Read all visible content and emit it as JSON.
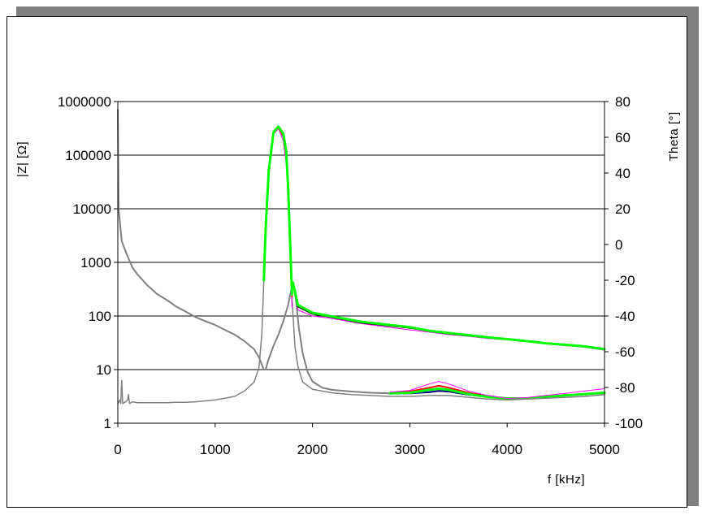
{
  "chart_data": {
    "type": "line",
    "xlabel": "f [kHz]",
    "ylabel_left": "|Z| [Ω]",
    "ylabel_right": "Theta [°]",
    "x_range": [
      0,
      5000
    ],
    "x_ticks": [
      0,
      1000,
      2000,
      3000,
      4000,
      5000
    ],
    "y_left_scale": "log",
    "y_left_range": [
      1,
      1000000
    ],
    "y_left_ticks": [
      1,
      10,
      100,
      1000,
      10000,
      100000,
      1000000
    ],
    "y_right_range": [
      -100,
      80
    ],
    "y_right_ticks": [
      -100,
      -80,
      -60,
      -40,
      -20,
      0,
      20,
      40,
      60,
      80
    ],
    "grid": "horizontal major lines",
    "legend": "none",
    "colors": {
      "gray": "#808080",
      "magenta": "#ff00ff",
      "red": "#ff0000",
      "green": "#00ff00",
      "black": "#000000",
      "navy": "#000080"
    },
    "series": [
      {
        "axis": "left",
        "color": "#808080",
        "width": 2,
        "points": [
          [
            0,
            700000
          ],
          [
            8,
            10000
          ],
          [
            40,
            2500
          ],
          [
            60,
            2000
          ],
          [
            100,
            1300
          ],
          [
            150,
            800
          ],
          [
            200,
            600
          ],
          [
            300,
            380
          ],
          [
            400,
            260
          ],
          [
            500,
            200
          ],
          [
            600,
            150
          ],
          [
            700,
            120
          ],
          [
            800,
            95
          ],
          [
            900,
            80
          ],
          [
            1000,
            68
          ],
          [
            1100,
            55
          ],
          [
            1200,
            45
          ],
          [
            1300,
            34
          ],
          [
            1400,
            24
          ],
          [
            1450,
            17
          ],
          [
            1500,
            10
          ],
          [
            1520,
            10
          ],
          [
            1540,
            14
          ],
          [
            1600,
            28
          ],
          [
            1650,
            45
          ],
          [
            1700,
            80
          ],
          [
            1750,
            160
          ],
          [
            1780,
            290
          ],
          [
            1800,
            420
          ],
          [
            1830,
            200
          ],
          [
            1860,
            60
          ],
          [
            1900,
            20
          ],
          [
            1950,
            9
          ],
          [
            2000,
            6
          ],
          [
            2100,
            4.6
          ],
          [
            2200,
            4.2
          ],
          [
            2400,
            3.9
          ],
          [
            2600,
            3.7
          ],
          [
            2800,
            3.6
          ],
          [
            3000,
            3.6
          ],
          [
            3200,
            3.8
          ],
          [
            3300,
            4
          ],
          [
            3400,
            3.9
          ],
          [
            3600,
            3.4
          ],
          [
            3800,
            3.1
          ],
          [
            4000,
            2.8
          ],
          [
            4200,
            2.9
          ],
          [
            4400,
            3.1
          ],
          [
            4600,
            3.3
          ],
          [
            4800,
            3.5
          ],
          [
            5000,
            3.8
          ]
        ]
      },
      {
        "axis": "left",
        "color": "#ff00ff",
        "width": 1,
        "points": [
          [
            1800,
            420
          ],
          [
            1850,
            130
          ],
          [
            2000,
            100
          ],
          [
            2200,
            90
          ],
          [
            2500,
            72
          ],
          [
            3000,
            55
          ],
          [
            3200,
            50
          ],
          [
            3400,
            45
          ],
          [
            3600,
            42
          ],
          [
            3800,
            38
          ],
          [
            4000,
            36
          ],
          [
            4200,
            33
          ],
          [
            4400,
            30
          ],
          [
            4600,
            28
          ],
          [
            4800,
            26
          ],
          [
            5000,
            23
          ]
        ]
      },
      {
        "axis": "left",
        "color": "#000000",
        "width": 2,
        "points": [
          [
            1800,
            420
          ],
          [
            1850,
            150
          ],
          [
            2000,
            110
          ],
          [
            2200,
            95
          ],
          [
            2500,
            75
          ],
          [
            3000,
            60
          ],
          [
            3200,
            52
          ],
          [
            3400,
            47
          ],
          [
            3600,
            43
          ],
          [
            3800,
            40
          ],
          [
            4000,
            37
          ],
          [
            4200,
            34
          ],
          [
            4400,
            31
          ],
          [
            4600,
            29
          ],
          [
            4800,
            27
          ],
          [
            5000,
            24
          ]
        ]
      },
      {
        "axis": "left",
        "color": "#00ff00",
        "width": 3,
        "points": [
          [
            1800,
            420
          ],
          [
            1850,
            160
          ],
          [
            2000,
            115
          ],
          [
            2200,
            98
          ],
          [
            2500,
            78
          ],
          [
            3000,
            62
          ],
          [
            3200,
            53
          ],
          [
            3400,
            48
          ],
          [
            3600,
            44
          ],
          [
            3800,
            40
          ],
          [
            4000,
            37
          ],
          [
            4200,
            34
          ],
          [
            4400,
            31
          ],
          [
            4600,
            29
          ],
          [
            4800,
            27
          ],
          [
            5000,
            24
          ]
        ]
      },
      {
        "axis": "left",
        "color": "#000080",
        "width": 2,
        "points": [
          [
            2800,
            3.6
          ],
          [
            3000,
            3.6
          ],
          [
            3200,
            3.8
          ],
          [
            3300,
            4
          ],
          [
            3400,
            3.9
          ],
          [
            3600,
            3.4
          ],
          [
            3800,
            3.1
          ]
        ]
      },
      {
        "axis": "left",
        "color": "#ff0000",
        "width": 2,
        "points": [
          [
            2800,
            3.7
          ],
          [
            3000,
            3.9
          ],
          [
            3200,
            4.6
          ],
          [
            3300,
            5
          ],
          [
            3400,
            4.6
          ],
          [
            3600,
            3.7
          ],
          [
            3800,
            3.2
          ]
        ]
      },
      {
        "axis": "left",
        "color": "#00ff00",
        "width": 3,
        "points": [
          [
            2800,
            3.6
          ],
          [
            3000,
            3.7
          ],
          [
            3200,
            4.2
          ],
          [
            3300,
            4.4
          ],
          [
            3400,
            4.2
          ],
          [
            3600,
            3.5
          ],
          [
            3800,
            3.1
          ],
          [
            4000,
            2.9
          ],
          [
            4200,
            2.9
          ],
          [
            4400,
            3.1
          ],
          [
            4600,
            3.3
          ],
          [
            4800,
            3.5
          ],
          [
            5000,
            3.7
          ]
        ]
      },
      {
        "axis": "left",
        "color": "#ff00ff",
        "width": 1,
        "points": [
          [
            2800,
            3.8
          ],
          [
            3000,
            4.1
          ],
          [
            3200,
            5.4
          ],
          [
            3300,
            6
          ],
          [
            3400,
            5.4
          ],
          [
            3600,
            4
          ],
          [
            3800,
            3.3
          ],
          [
            4000,
            2.9
          ],
          [
            4200,
            3
          ],
          [
            4400,
            3.3
          ],
          [
            4600,
            3.6
          ],
          [
            4800,
            4
          ],
          [
            5000,
            4.4
          ]
        ]
      },
      {
        "axis": "right",
        "color": "#808080",
        "width": 1.5,
        "points": [
          [
            0,
            -89
          ],
          [
            20,
            -87
          ],
          [
            30,
            -89
          ],
          [
            40,
            -76
          ],
          [
            50,
            -89
          ],
          [
            80,
            -88
          ],
          [
            100,
            -87
          ],
          [
            110,
            -84
          ],
          [
            120,
            -89
          ],
          [
            150,
            -88
          ],
          [
            200,
            -88.5
          ],
          [
            300,
            -88.5
          ],
          [
            400,
            -88.5
          ],
          [
            500,
            -88.5
          ],
          [
            600,
            -88.3
          ],
          [
            700,
            -88.3
          ],
          [
            800,
            -88
          ],
          [
            900,
            -87.5
          ],
          [
            1000,
            -87
          ],
          [
            1100,
            -86
          ],
          [
            1200,
            -85
          ],
          [
            1300,
            -82
          ],
          [
            1400,
            -77
          ],
          [
            1450,
            -69
          ],
          [
            1480,
            -50
          ],
          [
            1500,
            -20
          ],
          [
            1520,
            10
          ],
          [
            1550,
            40
          ],
          [
            1600,
            62
          ],
          [
            1650,
            65
          ],
          [
            1700,
            60
          ],
          [
            1730,
            50
          ],
          [
            1750,
            30
          ],
          [
            1770,
            0
          ],
          [
            1790,
            -30
          ],
          [
            1820,
            -57
          ],
          [
            1850,
            -68
          ],
          [
            1900,
            -77
          ],
          [
            2000,
            -81
          ],
          [
            2200,
            -83
          ],
          [
            2400,
            -84
          ],
          [
            2600,
            -84.5
          ],
          [
            2800,
            -85
          ],
          [
            3000,
            -85
          ],
          [
            3200,
            -84.5
          ],
          [
            3300,
            -84.5
          ],
          [
            3400,
            -84.5
          ],
          [
            3600,
            -85.5
          ],
          [
            3800,
            -86.5
          ],
          [
            4000,
            -87
          ],
          [
            4200,
            -86.5
          ],
          [
            4400,
            -86
          ],
          [
            4600,
            -85.5
          ],
          [
            4800,
            -85
          ],
          [
            5000,
            -84
          ]
        ]
      },
      {
        "axis": "right",
        "color": "#ff00ff",
        "width": 1,
        "points": [
          [
            1550,
            38
          ],
          [
            1600,
            62
          ],
          [
            1650,
            65
          ],
          [
            1700,
            58
          ],
          [
            1730,
            45
          ],
          [
            1750,
            25
          ],
          [
            1770,
            -5
          ],
          [
            1790,
            -35
          ]
        ]
      },
      {
        "axis": "right",
        "color": "#ff0000",
        "width": 2,
        "points": [
          [
            1550,
            40
          ],
          [
            1600,
            63
          ],
          [
            1650,
            65.5
          ],
          [
            1700,
            61
          ],
          [
            1730,
            51
          ],
          [
            1750,
            31
          ],
          [
            1770,
            1
          ],
          [
            1790,
            -29
          ]
        ]
      },
      {
        "axis": "right",
        "color": "#00ff00",
        "width": 3,
        "points": [
          [
            1500,
            -20
          ],
          [
            1520,
            10
          ],
          [
            1550,
            41
          ],
          [
            1600,
            63
          ],
          [
            1650,
            66
          ],
          [
            1700,
            62
          ],
          [
            1730,
            52
          ],
          [
            1750,
            32
          ],
          [
            1770,
            2
          ],
          [
            1790,
            -28
          ]
        ]
      }
    ]
  }
}
